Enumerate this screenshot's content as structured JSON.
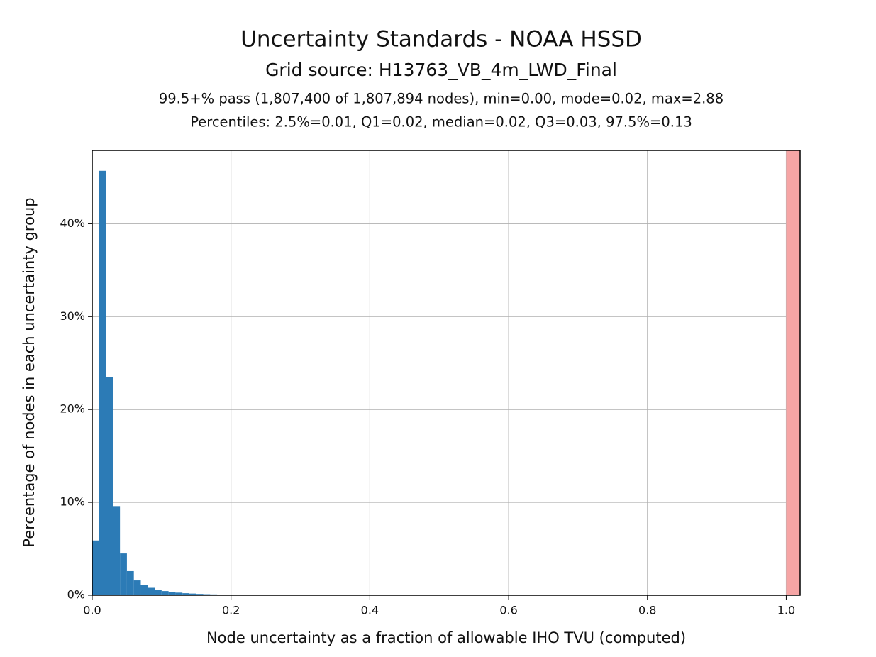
{
  "chart_data": {
    "type": "histogram",
    "title": "Uncertainty Standards - NOAA HSSD",
    "subtitle": "Grid source: H13763_VB_4m_LWD_Final",
    "annotations": [
      "99.5+% pass (1,807,400 of 1,807,894 nodes), min=0.00, mode=0.02, max=2.88",
      "Percentiles: 2.5%=0.01, Q1=0.02, median=0.02, Q3=0.03, 97.5%=0.13"
    ],
    "x_label": "Node uncertainty as a fraction of allowable IHO TVU (computed)",
    "y_label": "Percentage of nodes in each uncertainty group",
    "bins": [
      0,
      0.01,
      0.02,
      0.03,
      0.04,
      0.05,
      0.06,
      0.07,
      0.08,
      0.09,
      0.1,
      0.11,
      0.12,
      0.13,
      0.14,
      0.15,
      0.16,
      0.17,
      0.18,
      0.19,
      0.2,
      0.21,
      0.22,
      0.23,
      0.24,
      0.25,
      0.26,
      0.27,
      0.28,
      0.29
    ],
    "values": [
      5.9,
      45.7,
      23.5,
      9.6,
      4.5,
      2.6,
      1.6,
      1.1,
      0.8,
      0.6,
      0.45,
      0.35,
      0.28,
      0.22,
      0.18,
      0.14,
      0.11,
      0.09,
      0.07,
      0.06,
      0.05,
      0.04,
      0.03,
      0.03,
      0.02,
      0.02,
      0.01,
      0.01,
      0.01
    ],
    "color": "#2c7bb6",
    "highlight": {
      "xlim": [
        1.0,
        1.02
      ],
      "color": "#f6a5a5"
    },
    "xlim": [
      0,
      1.02
    ],
    "xticks": [
      {
        "value": 0,
        "label": "0.0"
      },
      0.2,
      0.4,
      0.6,
      0.8,
      {
        "value": 1,
        "label": "1.0"
      }
    ],
    "ylim": [
      0,
      47.9
    ],
    "yticks": [
      {
        "value": 0,
        "label": "0%"
      },
      {
        "value": 10,
        "label": "10%"
      },
      {
        "value": 20,
        "label": "20%"
      },
      {
        "value": 30,
        "label": "30%"
      },
      {
        "value": 40,
        "label": "40%"
      }
    ],
    "grid": true
  }
}
